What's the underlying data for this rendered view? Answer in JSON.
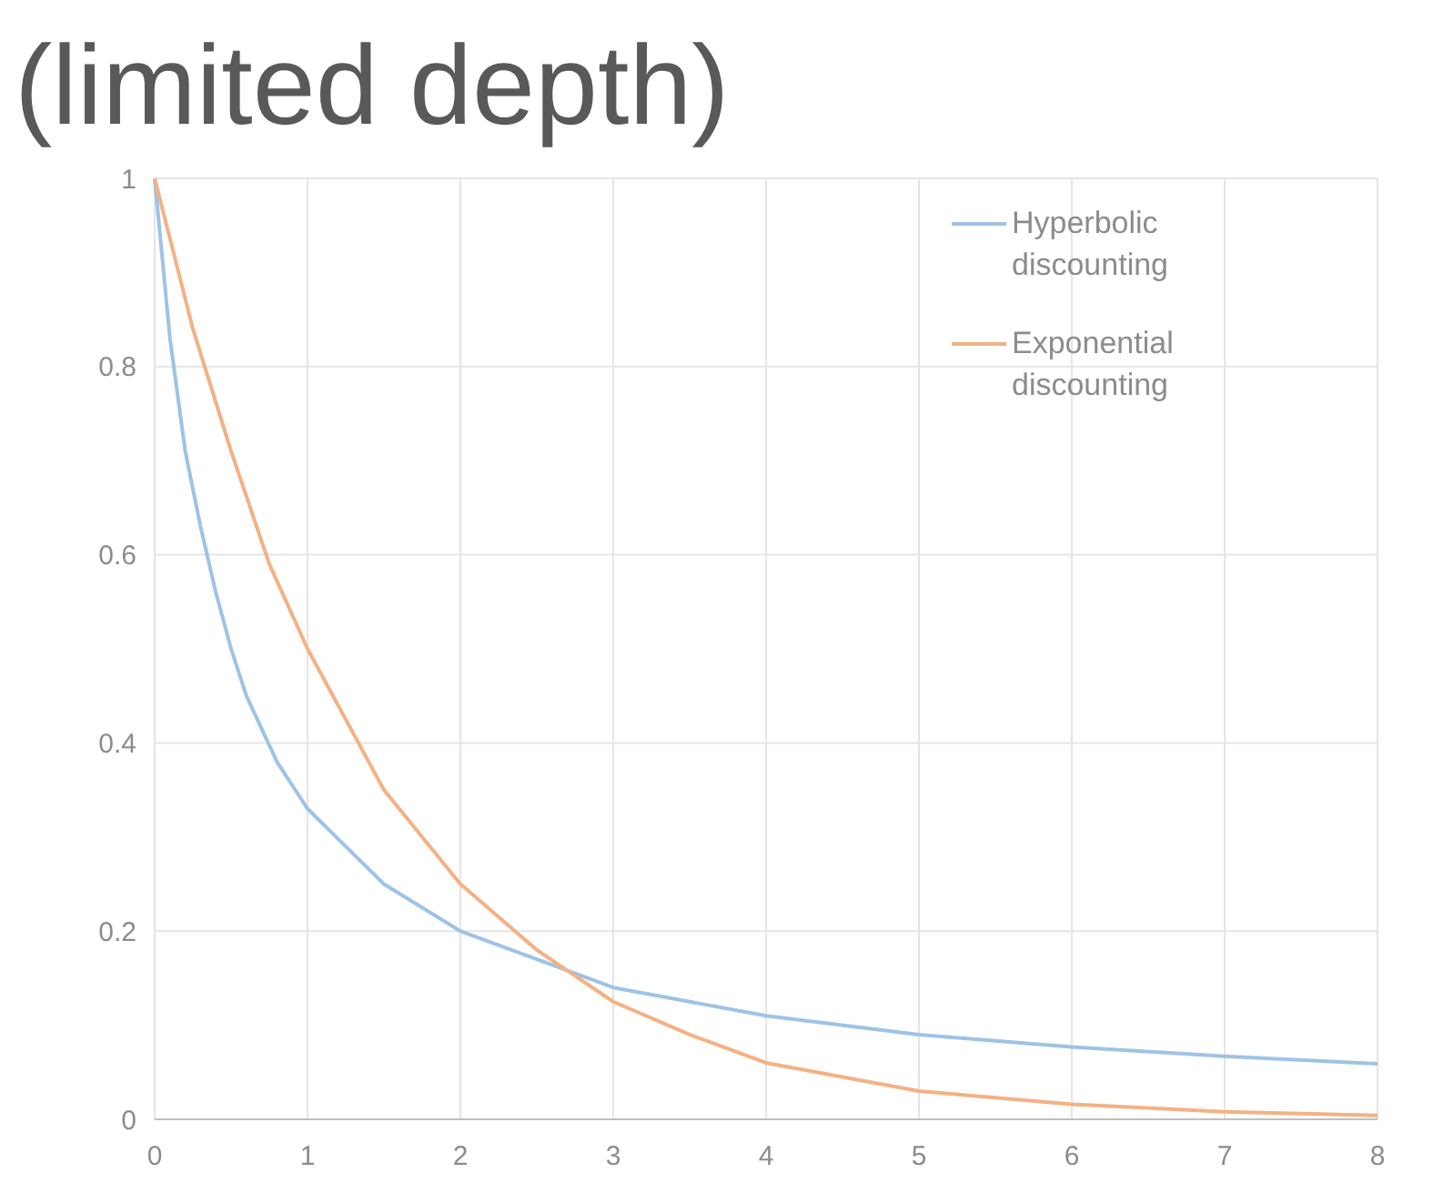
{
  "chart_data": {
    "type": "line",
    "title": "(limited depth)",
    "xlim": [
      0,
      8
    ],
    "xticks": [
      0,
      1,
      2,
      3,
      4,
      5,
      6,
      7,
      8
    ],
    "ylim": [
      0,
      1
    ],
    "yticks": [
      0,
      0.2,
      0.4,
      0.6,
      0.8,
      1
    ],
    "grid": true,
    "legend": "top right",
    "marker": "none",
    "series": [
      {
        "name": "Hyperbolic discounting",
        "color": "#9dc3e6",
        "x": [
          0,
          0.1,
          0.2,
          0.3,
          0.4,
          0.5,
          0.6,
          0.8,
          1,
          1.25,
          1.5,
          2,
          2.5,
          3,
          3.5,
          4,
          5,
          6,
          7,
          8
        ],
        "values": [
          1,
          0.83,
          0.71,
          0.63,
          0.56,
          0.5,
          0.45,
          0.38,
          0.33,
          0.29,
          0.25,
          0.2,
          0.17,
          0.14,
          0.125,
          0.11,
          0.09,
          0.077,
          0.067,
          0.059
        ]
      },
      {
        "name": "Exponential discounting",
        "color": "#f4b183",
        "x": [
          0,
          0.25,
          0.5,
          0.75,
          1,
          1.5,
          2,
          2.5,
          3,
          3.5,
          4,
          5,
          6,
          7,
          8
        ],
        "values": [
          1,
          0.84,
          0.71,
          0.59,
          0.5,
          0.35,
          0.25,
          0.18,
          0.125,
          0.09,
          0.06,
          0.03,
          0.016,
          0.008,
          0.004
        ]
      }
    ]
  }
}
